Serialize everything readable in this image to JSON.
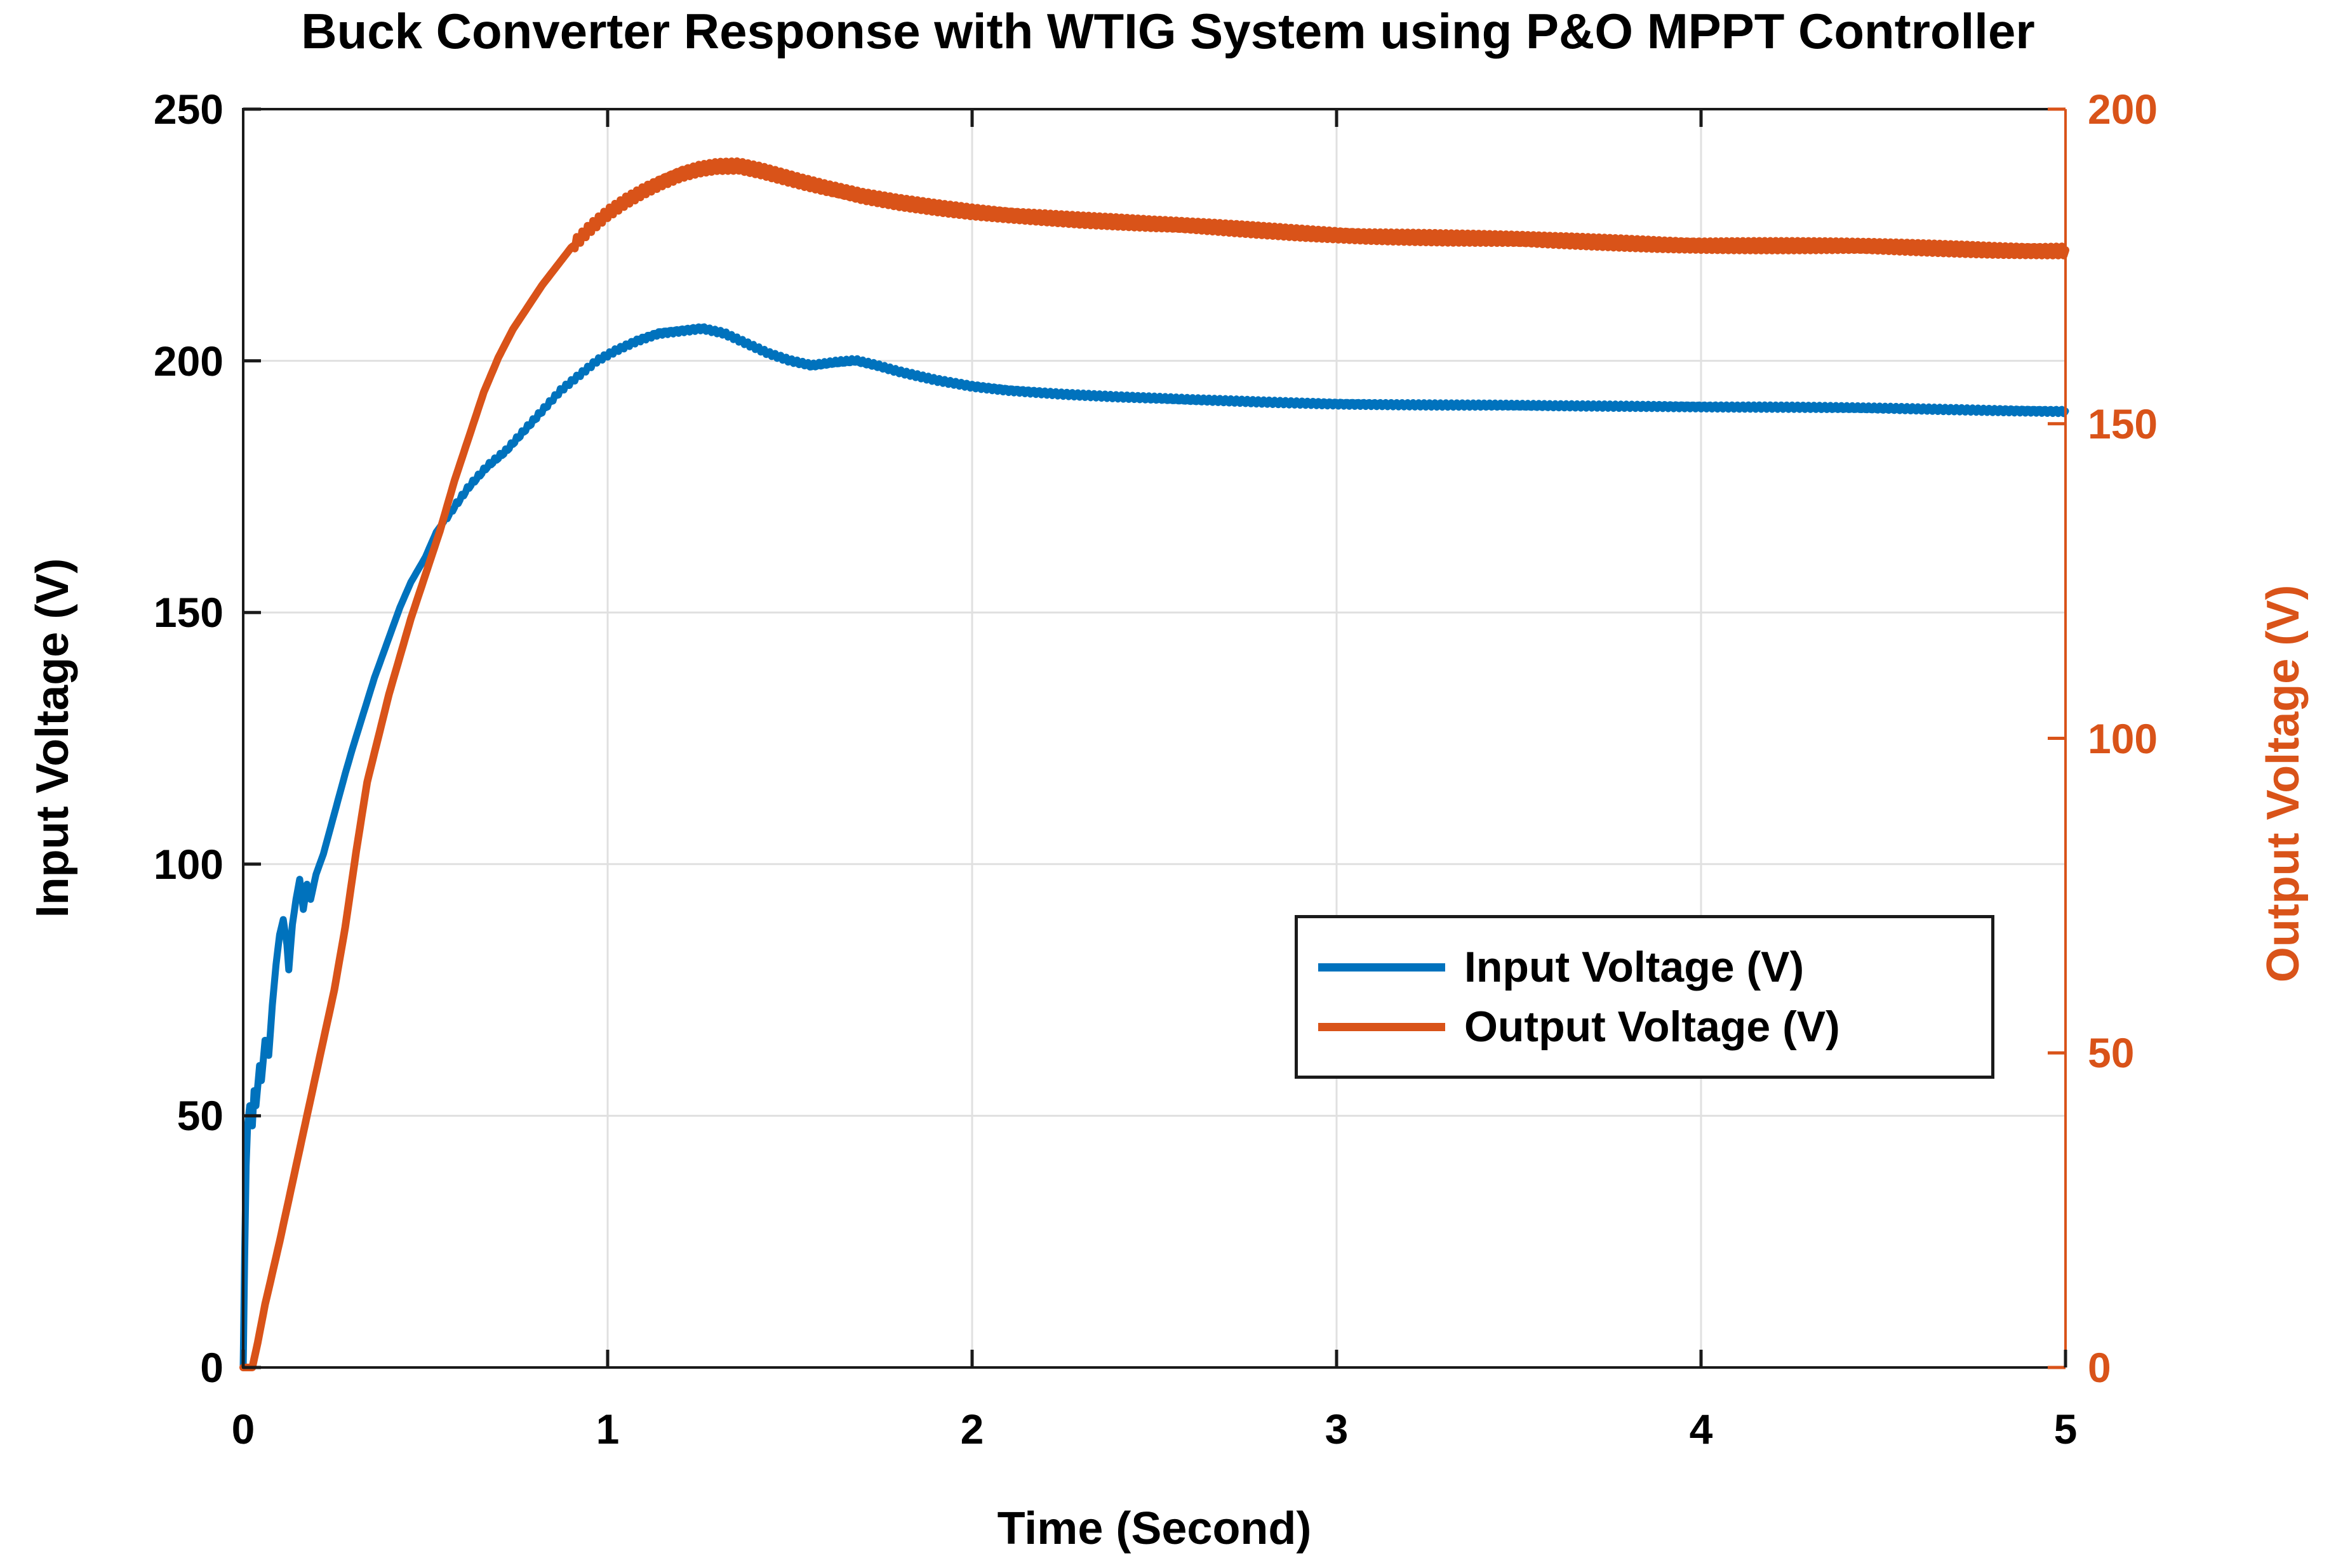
{
  "title": "Buck Converter Response with WTIG System using P&O MPPT Controller",
  "axes": {
    "x": {
      "label": "Time (Second)"
    },
    "y_left": {
      "label": "Input Voltage (V)"
    },
    "y_right": {
      "label": "Output Voltage (V)"
    }
  },
  "legend": {
    "items": [
      {
        "label": "Input Voltage (V)",
        "color": "#0072BD"
      },
      {
        "label": "Output Voltage (V)",
        "color": "#D95319"
      }
    ]
  },
  "colors": {
    "input": "#0072BD",
    "output": "#D95319",
    "grid": "#E0E0E0",
    "axis": "#1A1A1A",
    "right_axis": "#D95319",
    "background": "#FFFFFF"
  },
  "chart_data": {
    "type": "line",
    "title": "Buck Converter Response with WTIG System using P&O MPPT Controller",
    "xlabel": "Time (Second)",
    "ylabel_left": "Input Voltage (V)",
    "ylabel_right": "Output Voltage (V)",
    "x_range": [
      0,
      5
    ],
    "y_left_range": [
      0,
      250
    ],
    "y_right_range": [
      0,
      200
    ],
    "x_ticks": [
      0,
      1,
      2,
      3,
      4,
      5
    ],
    "y_left_ticks": [
      0,
      50,
      100,
      150,
      200,
      250
    ],
    "y_right_ticks": [
      0,
      50,
      100,
      150,
      200
    ],
    "grid": true,
    "legend_position": "middle-right",
    "series": [
      {
        "name": "Input Voltage (V)",
        "axis": "left",
        "color": "#0072BD",
        "points": [
          [
            0,
            0
          ],
          [
            0.004,
            22
          ],
          [
            0.008,
            40
          ],
          [
            0.012,
            48
          ],
          [
            0.018,
            52
          ],
          [
            0.025,
            48
          ],
          [
            0.03,
            55
          ],
          [
            0.035,
            52
          ],
          [
            0.045,
            60
          ],
          [
            0.05,
            57
          ],
          [
            0.06,
            65
          ],
          [
            0.07,
            62
          ],
          [
            0.08,
            72
          ],
          [
            0.09,
            80
          ],
          [
            0.1,
            86
          ],
          [
            0.11,
            89
          ],
          [
            0.12,
            84
          ],
          [
            0.125,
            79
          ],
          [
            0.135,
            88
          ],
          [
            0.145,
            93
          ],
          [
            0.155,
            97
          ],
          [
            0.165,
            91
          ],
          [
            0.175,
            96
          ],
          [
            0.185,
            93
          ],
          [
            0.2,
            98
          ],
          [
            0.22,
            102
          ],
          [
            0.25,
            110
          ],
          [
            0.28,
            118
          ],
          [
            0.3,
            123
          ],
          [
            0.33,
            130
          ],
          [
            0.36,
            137
          ],
          [
            0.4,
            145
          ],
          [
            0.43,
            151
          ],
          [
            0.46,
            156
          ],
          [
            0.5,
            161
          ],
          [
            0.53,
            166
          ],
          [
            0.57,
            170
          ],
          [
            0.62,
            175
          ],
          [
            0.67,
            179
          ],
          [
            0.72,
            182
          ],
          [
            0.77,
            186
          ],
          [
            0.82,
            190
          ],
          [
            0.87,
            194
          ],
          [
            0.92,
            197
          ],
          [
            0.97,
            200
          ],
          [
            1.02,
            202
          ],
          [
            1.08,
            204
          ],
          [
            1.14,
            205.5
          ],
          [
            1.2,
            206
          ],
          [
            1.26,
            206.5
          ],
          [
            1.32,
            205.5
          ],
          [
            1.38,
            203.5
          ],
          [
            1.44,
            201.5
          ],
          [
            1.5,
            200
          ],
          [
            1.56,
            199
          ],
          [
            1.62,
            199.6
          ],
          [
            1.68,
            200
          ],
          [
            1.74,
            199
          ],
          [
            1.8,
            197.8
          ],
          [
            1.9,
            196.2
          ],
          [
            2.0,
            195
          ],
          [
            2.1,
            194.2
          ],
          [
            2.25,
            193.4
          ],
          [
            2.4,
            192.8
          ],
          [
            2.6,
            192.2
          ],
          [
            2.8,
            191.8
          ],
          [
            3.0,
            191.5
          ],
          [
            3.3,
            191.2
          ],
          [
            3.6,
            191
          ],
          [
            3.9,
            191
          ],
          [
            4.2,
            190.8
          ],
          [
            4.5,
            190.5
          ],
          [
            4.8,
            190.2
          ],
          [
            5.0,
            190
          ]
        ]
      },
      {
        "name": "Output Voltage (V)",
        "axis": "right",
        "color": "#D95319",
        "points": [
          [
            0,
            0
          ],
          [
            0.025,
            0
          ],
          [
            0.04,
            4
          ],
          [
            0.06,
            10
          ],
          [
            0.08,
            15
          ],
          [
            0.1,
            20
          ],
          [
            0.13,
            28
          ],
          [
            0.16,
            36
          ],
          [
            0.19,
            44
          ],
          [
            0.22,
            52
          ],
          [
            0.25,
            60
          ],
          [
            0.28,
            70
          ],
          [
            0.31,
            82
          ],
          [
            0.34,
            93
          ],
          [
            0.37,
            100
          ],
          [
            0.4,
            107
          ],
          [
            0.43,
            113
          ],
          [
            0.46,
            119
          ],
          [
            0.5,
            126
          ],
          [
            0.54,
            133
          ],
          [
            0.58,
            141
          ],
          [
            0.62,
            148
          ],
          [
            0.66,
            155
          ],
          [
            0.7,
            160.5
          ],
          [
            0.74,
            165
          ],
          [
            0.78,
            168.5
          ],
          [
            0.82,
            172
          ],
          [
            0.86,
            175
          ],
          [
            0.9,
            178
          ],
          [
            0.95,
            181
          ],
          [
            1.0,
            183.5
          ],
          [
            1.05,
            185.5
          ],
          [
            1.1,
            187.2
          ],
          [
            1.15,
            188.6
          ],
          [
            1.2,
            189.8
          ],
          [
            1.25,
            190.6
          ],
          [
            1.3,
            191
          ],
          [
            1.36,
            191
          ],
          [
            1.42,
            190.2
          ],
          [
            1.48,
            189.2
          ],
          [
            1.54,
            188.2
          ],
          [
            1.6,
            187.3
          ],
          [
            1.7,
            186
          ],
          [
            1.8,
            185.1
          ],
          [
            1.9,
            184.4
          ],
          [
            2.0,
            183.8
          ],
          [
            2.15,
            183.1
          ],
          [
            2.3,
            182.4
          ],
          [
            2.5,
            181.6
          ],
          [
            2.7,
            181
          ],
          [
            2.9,
            180.4
          ],
          [
            3.1,
            179.9
          ],
          [
            3.3,
            179.5
          ],
          [
            3.6,
            179
          ],
          [
            3.9,
            178.6
          ],
          [
            4.2,
            178.3
          ],
          [
            4.5,
            178
          ],
          [
            4.8,
            177.7
          ],
          [
            5.0,
            177.6
          ]
        ]
      }
    ]
  }
}
